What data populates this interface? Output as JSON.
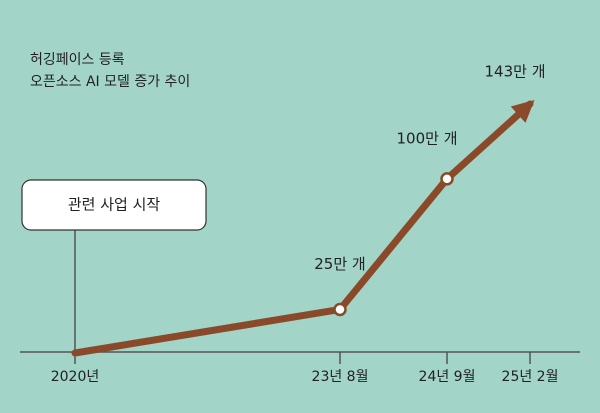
{
  "chart_data": {
    "type": "line",
    "title": "허깅페이스 등록",
    "subtitle": "오픈소스 AI 모델 증가 추이",
    "annotation": "관련 사업 시작",
    "categories": [
      "2020년",
      "23년 8월",
      "24년 9월",
      "25년 2월"
    ],
    "values": [
      0,
      25,
      100,
      143
    ],
    "value_labels": [
      null,
      "25만 개",
      "100만 개",
      "143만 개"
    ],
    "color": "#8a4a2a"
  }
}
